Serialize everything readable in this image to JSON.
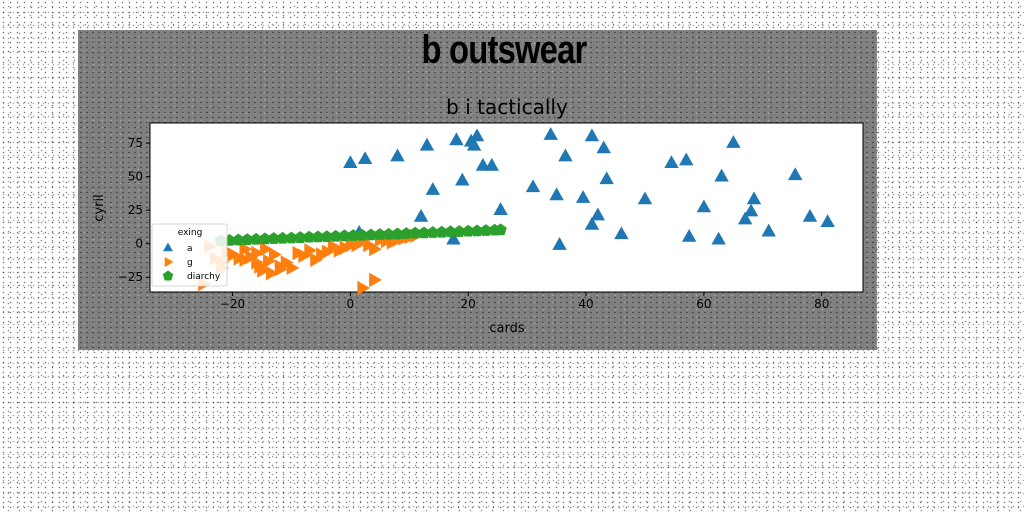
{
  "suptitle": "b outswear",
  "chart_data": {
    "type": "scatter",
    "title": "b i tactically",
    "xlabel": "cards",
    "ylabel": "cyril",
    "xlim": [
      -34,
      87
    ],
    "ylim": [
      -36,
      90
    ],
    "xticks": [
      -20,
      0,
      20,
      40,
      60,
      80
    ],
    "yticks": [
      -25,
      0,
      25,
      50,
      75
    ],
    "legend": {
      "title": "exing",
      "location": "lower-left"
    },
    "grid": false,
    "series": [
      {
        "name": "a",
        "marker": "triangle-up",
        "color": "#1f77b4",
        "points": [
          [
            0,
            60
          ],
          [
            2.5,
            63
          ],
          [
            8,
            65
          ],
          [
            13,
            73
          ],
          [
            14,
            40
          ],
          [
            17.5,
            3
          ],
          [
            18,
            77
          ],
          [
            19,
            47
          ],
          [
            20.5,
            76
          ],
          [
            21,
            73
          ],
          [
            21.5,
            80
          ],
          [
            22.5,
            58
          ],
          [
            24,
            58
          ],
          [
            25.5,
            25
          ],
          [
            31,
            42
          ],
          [
            34,
            81
          ],
          [
            35,
            36
          ],
          [
            35.5,
            -1
          ],
          [
            36.5,
            65
          ],
          [
            39.5,
            34
          ],
          [
            41,
            80
          ],
          [
            41,
            14
          ],
          [
            42,
            21
          ],
          [
            43,
            71
          ],
          [
            43.5,
            48
          ],
          [
            46,
            7
          ],
          [
            50,
            33
          ],
          [
            54.5,
            60
          ],
          [
            57,
            62
          ],
          [
            57.5,
            5
          ],
          [
            60,
            27
          ],
          [
            62.5,
            3
          ],
          [
            63,
            50
          ],
          [
            65,
            75
          ],
          [
            67,
            18
          ],
          [
            68,
            24
          ],
          [
            68.5,
            33
          ],
          [
            71,
            9
          ],
          [
            75.5,
            51
          ],
          [
            78,
            20
          ],
          [
            81,
            16
          ],
          [
            1.5,
            8
          ],
          [
            12,
            20
          ]
        ]
      },
      {
        "name": "g",
        "marker": "triangle-right",
        "color": "#ff7f0e",
        "points": [
          [
            -25,
            -30
          ],
          [
            -24,
            -2
          ],
          [
            -23,
            -11
          ],
          [
            -22,
            -14
          ],
          [
            -21,
            -6
          ],
          [
            -20,
            -8
          ],
          [
            -19,
            -11
          ],
          [
            -18,
            -4
          ],
          [
            -17,
            -10
          ],
          [
            -16,
            -7
          ],
          [
            -15.5,
            -17
          ],
          [
            -15,
            -20
          ],
          [
            -14.5,
            -4
          ],
          [
            -14,
            -13
          ],
          [
            -13.5,
            -22
          ],
          [
            -13,
            -8
          ],
          [
            -12,
            -17
          ],
          [
            -11,
            -14
          ],
          [
            -10,
            -18
          ],
          [
            -9,
            -7
          ],
          [
            -8,
            -9
          ],
          [
            -7,
            -5
          ],
          [
            -6,
            -12
          ],
          [
            -5,
            -8
          ],
          [
            -4,
            -6
          ],
          [
            -3,
            -2
          ],
          [
            -2,
            -5
          ],
          [
            -1,
            -3
          ],
          [
            0,
            -1
          ],
          [
            1,
            -1
          ],
          [
            2,
            2
          ],
          [
            3,
            -1
          ],
          [
            4,
            -4
          ],
          [
            5,
            3
          ],
          [
            6,
            2
          ],
          [
            7,
            1
          ],
          [
            8,
            3
          ],
          [
            9,
            4
          ],
          [
            10,
            5
          ],
          [
            11,
            6
          ],
          [
            2,
            -33
          ],
          [
            4,
            -27
          ],
          [
            -18,
            -12
          ],
          [
            -22,
            -18
          ],
          [
            -16,
            -14
          ],
          [
            -12,
            -19
          ]
        ]
      },
      {
        "name": "diarchy",
        "marker": "pentagon",
        "color": "#2ca02c",
        "points": [
          [
            -22,
            2
          ],
          [
            -20.5,
            2.4
          ],
          [
            -19,
            2.7
          ],
          [
            -17.5,
            3
          ],
          [
            -16,
            3.2
          ],
          [
            -14.5,
            3.5
          ],
          [
            -13,
            3.8
          ],
          [
            -11.5,
            4
          ],
          [
            -10,
            4.2
          ],
          [
            -8.5,
            4.5
          ],
          [
            -7,
            4.8
          ],
          [
            -5.5,
            5
          ],
          [
            -4,
            5.2
          ],
          [
            -2.5,
            5.5
          ],
          [
            -1,
            5.8
          ],
          [
            0.5,
            6
          ],
          [
            2,
            6.2
          ],
          [
            3.5,
            6.5
          ],
          [
            5,
            6.8
          ],
          [
            6.5,
            7
          ],
          [
            8,
            7.2
          ],
          [
            9.5,
            7.5
          ],
          [
            11,
            7.8
          ],
          [
            12.5,
            8
          ],
          [
            14,
            8.3
          ],
          [
            15.5,
            8.5
          ],
          [
            17,
            8.8
          ],
          [
            18.5,
            9
          ],
          [
            20,
            9.3
          ],
          [
            21.5,
            9.5
          ],
          [
            23,
            9.8
          ],
          [
            24.5,
            10
          ],
          [
            25.5,
            10.3
          ]
        ]
      }
    ]
  }
}
